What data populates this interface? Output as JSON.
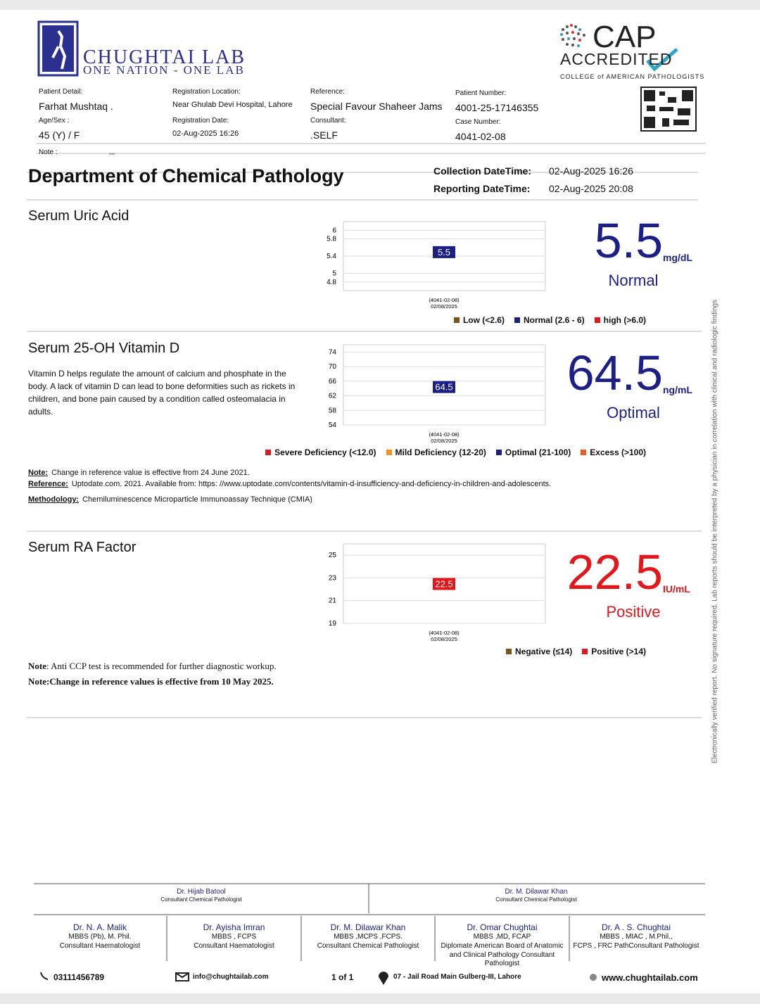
{
  "header": {
    "logo_name": "CHUGHTAI LAB",
    "logo_tagline": "ONE NATION - ONE LAB",
    "cap_title": "CAP",
    "cap_accredited": "ACCREDITED",
    "cap_org": "COLLEGE of AMERICAN PATHOLOGISTS"
  },
  "patient": {
    "fields": [
      {
        "label": "Patient Detail:",
        "value": "Farhat Mushtaq ."
      },
      {
        "label": "Registration Location:",
        "value": "Near Ghulab Devi Hospital, Lahore"
      },
      {
        "label": "Reference:",
        "value": "Special Favour Shaheer Jams"
      },
      {
        "label": "Patient Number:",
        "value": "4001-25-17146355"
      },
      {
        "label": "Age/Sex :",
        "value": "45 (Y) / F"
      },
      {
        "label": "Registration Date:",
        "value": "02-Aug-2025 16:26"
      },
      {
        "label": "Consultant:",
        "value": ".SELF"
      },
      {
        "label": "Case Number:",
        "value": "4041-02-08"
      }
    ],
    "note": {
      "label": "Note :",
      "value": ",,,"
    }
  },
  "department": {
    "title": "Department of Chemical Pathology",
    "collection_label": "Collection DateTime:",
    "collection_value": "02-Aug-2025 16:26",
    "reporting_label": "Reporting DateTime:",
    "reporting_value": "02-Aug-2025 20:08"
  },
  "tests": [
    {
      "name": "Serum Uric Acid",
      "chart": {
        "type": "point",
        "category_lines": [
          "(4041-02-08)",
          "02/08/2025"
        ],
        "values": [
          5.5
        ],
        "color": "#1c1f86",
        "ylim": [
          4.6,
          6.2
        ],
        "yticks": [
          6,
          5.8,
          5.4,
          5,
          4.8
        ],
        "grid": true
      },
      "result": {
        "unit": "mg/dL",
        "status": "Normal",
        "color": "#1c1f86"
      },
      "legend": [
        {
          "label": "Low (<2.6)",
          "color": "#7a5418"
        },
        {
          "label": "Normal (2.6 - 6)",
          "color": "#1c1f86"
        },
        {
          "label": "high (>6.0)",
          "color": "#e3161b"
        }
      ]
    },
    {
      "name": "Serum 25-OH Vitamin D",
      "description": "Vitamin D helps regulate the amount of calcium and phosphate in the body. A lack of vitamin D can lead to bone deformities such as rickets in children, and bone pain caused by a condition called osteomalacia in adults.",
      "chart": {
        "type": "point",
        "category_lines": [
          "(4041-02-08)",
          "02/08/2025"
        ],
        "values": [
          64.5
        ],
        "color": "#1c1f86",
        "ylim": [
          54,
          76
        ],
        "yticks": [
          74,
          70,
          66,
          62,
          58,
          54
        ],
        "grid": true
      },
      "result": {
        "unit": "ng/mL",
        "status": "Optimal",
        "color": "#1c1f86"
      },
      "legend": [
        {
          "label": "Severe Deficiency (<12.0)",
          "color": "#e3161b"
        },
        {
          "label": "Mild Deficiency (12-20)",
          "color": "#f7941d"
        },
        {
          "label": "Optimal (21-100)",
          "color": "#1c1f86"
        },
        {
          "label": "Excess (>100)",
          "color": "#ee5a24"
        }
      ],
      "notes": [
        {
          "label": "Note:",
          "text": "Change in reference value is effective from  24 June 2021."
        },
        {
          "label": "Reference:",
          "text": "Uptodate.com. 2021. Available from: https: //www.uptodate.com/contents/vitamin-d-insufficiency-and-deficiency-in-children-and-adolescents."
        },
        {
          "label": "Methodology:",
          "text": "Chemiluminescence Microparticle Immunoassay Technique (CMIA)"
        }
      ]
    },
    {
      "name": "Serum RA Factor",
      "chart": {
        "type": "point",
        "category_lines": [
          "(4041-02-08)",
          "02/08/2025"
        ],
        "values": [
          22.5
        ],
        "color": "#e3161b",
        "ylim": [
          19,
          26
        ],
        "yticks": [
          25,
          23,
          21,
          19
        ],
        "grid": true
      },
      "result": {
        "unit": "IU/mL",
        "status": "Positive",
        "color": "#e3161b"
      },
      "legend": [
        {
          "label": "Negative (≤14)",
          "color": "#7a5418"
        },
        {
          "label": "Positive (>14)",
          "color": "#e3161b"
        }
      ],
      "notes": [
        {
          "label": "Note",
          "text": ": Anti CCP test is recommended for further diagnostic workup."
        },
        {
          "label": "Note:",
          "text": "Change in reference values is effective from 10 May 2025."
        }
      ]
    }
  ],
  "side_note": "Electronically verified report. No signature required. Lab reports should be interpreted by a physician in correlation with clinical and radiologic findings",
  "footer": {
    "signatories_top": [
      {
        "name": "Dr. Hijab Batool",
        "title": "Consultant Chemical Pathologist"
      },
      {
        "name": "Dr. M. Dilawar Khan",
        "title": "Consultant Chemical Pathologist"
      }
    ],
    "signatories_bottom": [
      {
        "name": "Dr. N. A. Malik",
        "qualifications": "MBBS (Pb), M. Phil.",
        "title": "Consultant Haematologist"
      },
      {
        "name": "Dr. Ayisha Imran",
        "qualifications": "MBBS , FCPS",
        "title": "Consultant Haematologist"
      },
      {
        "name": "Dr. M. Dilawar Khan",
        "qualifications": "MBBS ,MCPS ,FCPS.",
        "title": "Consultant Chemical Pathologist"
      },
      {
        "name": "Dr. Omar Chughtai",
        "qualifications": "MBBS ,MD, FCAP",
        "title": "Diplomate American Board of Anatomic and Clinical Pathology Consultant Pathologist"
      },
      {
        "name": "Dr. A . S. Chughtai",
        "qualifications": "MBBS , MIAC , M.Phil.,",
        "title": "FCPS , FRC PathConsultant Pathologist"
      }
    ],
    "contact": {
      "phone": "03111456789",
      "email": "info@chughtailab.com",
      "page": "1 of 1",
      "address": "07 - Jail Road Main Gulberg-III, Lahore",
      "website": "www.chughtailab.com"
    }
  }
}
